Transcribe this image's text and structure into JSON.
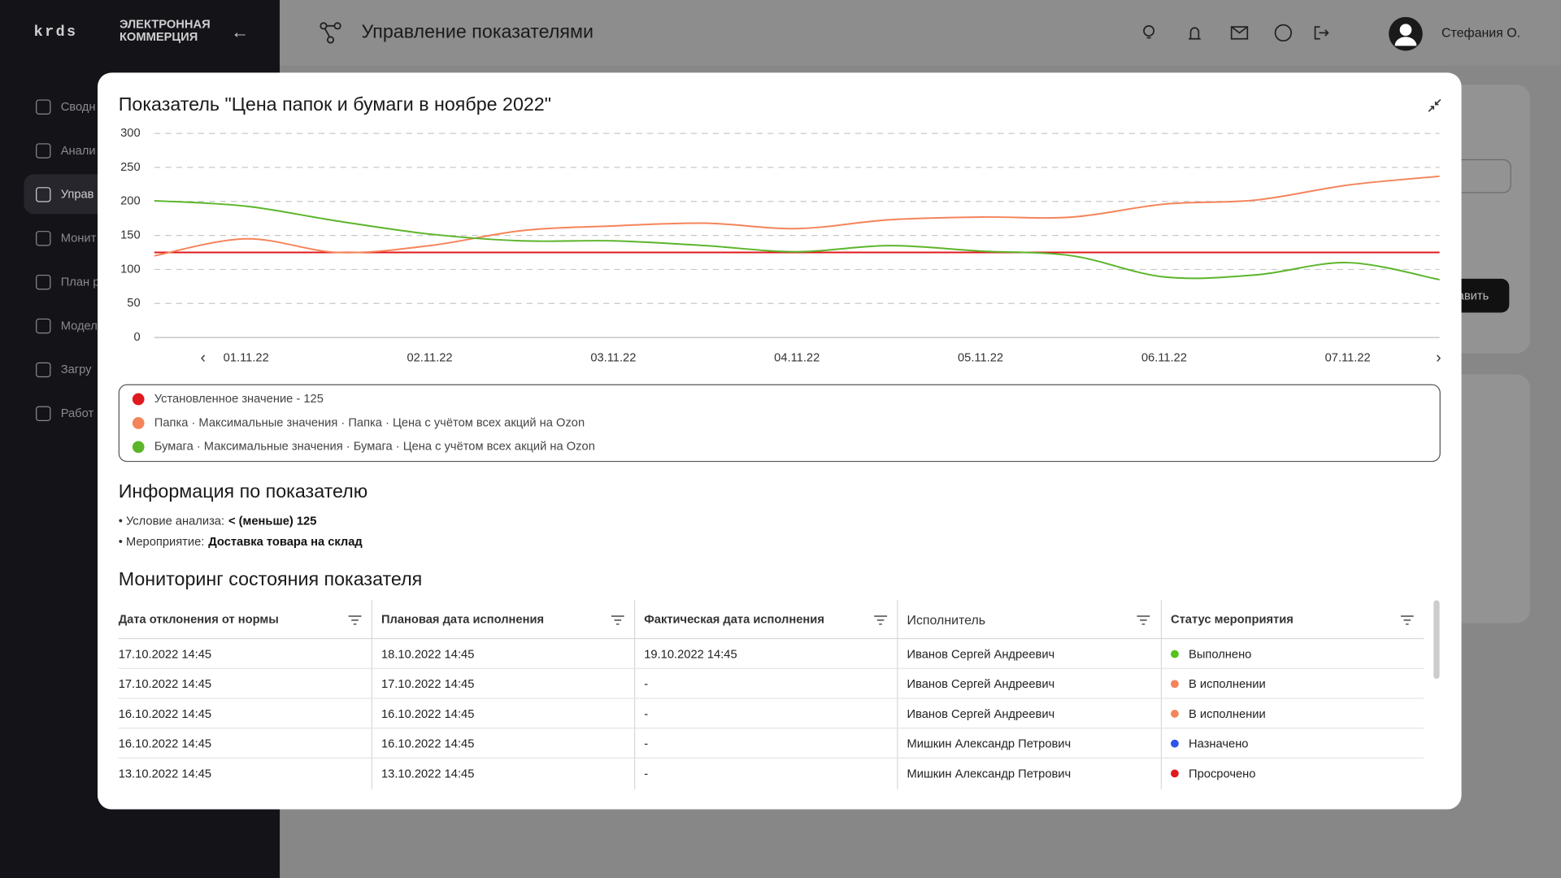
{
  "header": {
    "logo_mark": "krds",
    "logo_line1": "ЭЛЕКТРОННАЯ",
    "logo_line2": "КОММЕРЦИЯ",
    "title": "Управление показателями",
    "user": "Стефания О."
  },
  "sidebar": {
    "items": [
      "Сводн",
      "Анали",
      "Управ",
      "Монит",
      "План р",
      "Модел",
      "Загру",
      "Работ"
    ]
  },
  "background": {
    "button": "авить"
  },
  "modal": {
    "chart_data": {
      "type": "line",
      "title": "Показатель \"Цена папок и бумаги в ноябре 2022\"",
      "categories": [
        null,
        "01.11.22",
        null,
        "02.11.22",
        null,
        "03.11.22",
        null,
        "04.11.22",
        null,
        "05.11.22",
        null,
        "06.11.22",
        null,
        "07.11.22",
        null
      ],
      "series": [
        {
          "name": "Установленное значение - 125",
          "color": "#e0191e",
          "values": [
            125,
            125,
            125,
            125,
            125,
            125,
            125,
            125,
            125,
            125,
            125,
            125,
            125,
            125,
            125
          ]
        },
        {
          "name": "Папка · Максимальные значения · Папка · Цена с учётом всех акций на Ozon",
          "color": "#f5845a",
          "values": [
            120,
            145,
            125,
            135,
            157,
            164,
            168,
            160,
            173,
            177,
            177,
            196,
            202,
            224,
            237
          ]
        },
        {
          "name": "Бумага · Максимальные значения · Бумага · Цена с учётом всех акций на Ozon",
          "color": "#5bb52a",
          "values": [
            201,
            193,
            171,
            152,
            142,
            142,
            135,
            126,
            135,
            127,
            120,
            89,
            92,
            110,
            85
          ]
        }
      ],
      "ylim": [
        0,
        300
      ],
      "yticks": [
        0,
        50,
        100,
        150,
        200,
        250,
        300
      ],
      "grid": true
    },
    "info": {
      "title": "Информация по показателю",
      "items": [
        {
          "label": "Условие анализа:",
          "value": "< (меньше) 125"
        },
        {
          "label": "Мероприятие:",
          "value": "Доставка товара на склад"
        }
      ]
    },
    "monitoring": {
      "title": "Мониторинг состояния показателя",
      "columns": [
        "Дата отклонения от нормы",
        "Плановая дата исполнения",
        "Фактическая дата исполнения",
        "Исполнитель",
        "Статус мероприятия"
      ],
      "rows": [
        [
          "17.10.2022 14:45",
          "18.10.2022 14:45",
          "19.10.2022 14:45",
          "Иванов Сергей Андреевич",
          "Выполнено"
        ],
        [
          "17.10.2022 14:45",
          "17.10.2022 14:45",
          "-",
          "Иванов Сергей Андреевич",
          "В исполнении"
        ],
        [
          "16.10.2022 14:45",
          "16.10.2022 14:45",
          "-",
          "Иванов Сергей Андреевич",
          "В исполнении"
        ],
        [
          "16.10.2022 14:45",
          "16.10.2022 14:45",
          "-",
          "Мишкин Александр Петрович",
          "Назначено"
        ],
        [
          "13.10.2022 14:45",
          "13.10.2022 14:45",
          "-",
          "Мишкин Александр Петрович",
          "Просрочено"
        ]
      ],
      "status_colors": [
        "#52c41a",
        "#f5845a",
        "#f5845a",
        "#2f54eb",
        "#e0191e"
      ]
    }
  }
}
